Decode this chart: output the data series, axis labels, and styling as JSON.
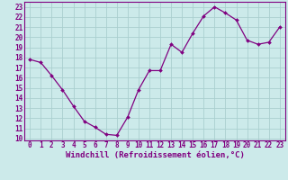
{
  "x": [
    0,
    1,
    2,
    3,
    4,
    5,
    6,
    7,
    8,
    9,
    10,
    11,
    12,
    13,
    14,
    15,
    16,
    17,
    18,
    19,
    20,
    21,
    22,
    23
  ],
  "y": [
    17.8,
    17.5,
    16.2,
    14.8,
    13.2,
    11.7,
    11.1,
    10.4,
    10.3,
    12.1,
    14.8,
    16.7,
    16.7,
    19.3,
    18.5,
    20.4,
    22.1,
    23.0,
    22.4,
    21.7,
    19.7,
    19.3,
    19.5,
    21.0
  ],
  "line_color": "#800080",
  "marker": "D",
  "marker_size": 2.0,
  "bg_color": "#cceaea",
  "grid_color": "#aacfcf",
  "xlabel": "Windchill (Refroidissement éolien,°C)",
  "xlabel_fontsize": 6.5,
  "ytick_labels": [
    "10",
    "11",
    "12",
    "13",
    "14",
    "15",
    "16",
    "17",
    "18",
    "19",
    "20",
    "21",
    "22",
    "23"
  ],
  "ytick_values": [
    10,
    11,
    12,
    13,
    14,
    15,
    16,
    17,
    18,
    19,
    20,
    21,
    22,
    23
  ],
  "xtick_labels": [
    "0",
    "1",
    "2",
    "3",
    "4",
    "5",
    "6",
    "7",
    "8",
    "9",
    "10",
    "11",
    "12",
    "13",
    "14",
    "15",
    "16",
    "17",
    "18",
    "19",
    "20",
    "21",
    "22",
    "23"
  ],
  "ylim": [
    9.8,
    23.5
  ],
  "xlim": [
    -0.5,
    23.5
  ],
  "tick_color": "#800080",
  "tick_fontsize": 5.5,
  "linewidth": 0.9
}
